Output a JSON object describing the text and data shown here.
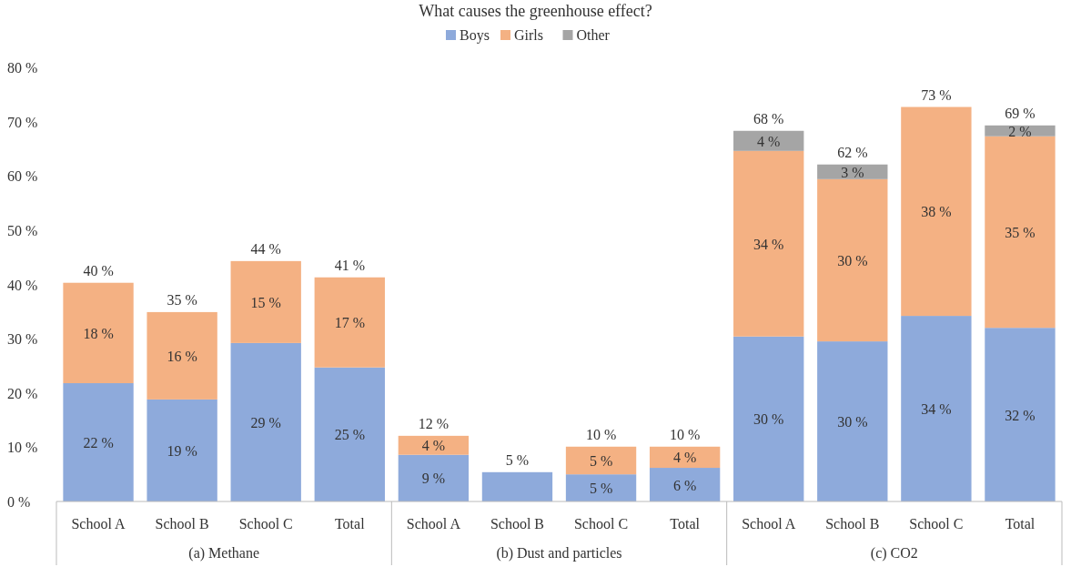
{
  "chart_data": {
    "type": "bar",
    "stacked": true,
    "title": "What causes the greenhouse effect?",
    "legend": "top",
    "categories": [
      "School A",
      "School B",
      "School C",
      "Total",
      "School A",
      "School B",
      "School C",
      "Total",
      "School A",
      "School B",
      "School C",
      "Total"
    ],
    "series": [
      {
        "name": "Boys",
        "color": "#8eaadb",
        "values": [
          21.8,
          18.8,
          29.2,
          24.7,
          8.6,
          5.4,
          5.0,
          6.2,
          30.4,
          29.5,
          34.2,
          32.0
        ],
        "value_labels": [
          "22 %",
          "19 %",
          "29 %",
          "25 %",
          "9 %",
          null,
          "5 %",
          "6 %",
          "30 %",
          "30 %",
          "34 %",
          "32 %"
        ]
      },
      {
        "name": "Girls",
        "color": "#f4b183",
        "values": [
          18.5,
          16.1,
          15.1,
          16.6,
          3.5,
          null,
          5.1,
          3.9,
          34.2,
          29.9,
          38.5,
          35.3
        ],
        "value_labels": [
          "18 %",
          "16 %",
          "15 %",
          "17 %",
          "4 %",
          null,
          "5 %",
          "4 %",
          "34 %",
          "30 %",
          "38 %",
          "35 %"
        ]
      },
      {
        "name": "Other",
        "color": "#a5a5a5",
        "values": [
          null,
          null,
          null,
          null,
          null,
          null,
          null,
          null,
          3.7,
          2.7,
          null,
          2.0
        ],
        "value_labels": [
          null,
          null,
          null,
          null,
          null,
          null,
          null,
          null,
          "4 %",
          "3 %",
          null,
          "2 %"
        ]
      }
    ],
    "totals": [
      "40 %",
      "35 %",
      "44 %",
      "41 %",
      "12 %",
      "5 %",
      "10 %",
      "10 %",
      "68 %",
      "62 %",
      "73 %",
      "69 %"
    ],
    "ylim": [
      0,
      80
    ],
    "yticks": [
      {
        "value": 0,
        "label": "0 %"
      },
      {
        "value": 10,
        "label": "10 %"
      },
      {
        "value": 20,
        "label": "20 %"
      },
      {
        "value": 30,
        "label": "30 %"
      },
      {
        "value": 40,
        "label": "40 %"
      },
      {
        "value": 50,
        "label": "50 %"
      },
      {
        "value": 60,
        "label": "60 %"
      },
      {
        "value": 70,
        "label": "70 %"
      },
      {
        "value": 80,
        "label": "80 %"
      }
    ],
    "annotations": [
      "(a) Methane",
      "(b) Dust and particles",
      "(c) CO2"
    ]
  }
}
